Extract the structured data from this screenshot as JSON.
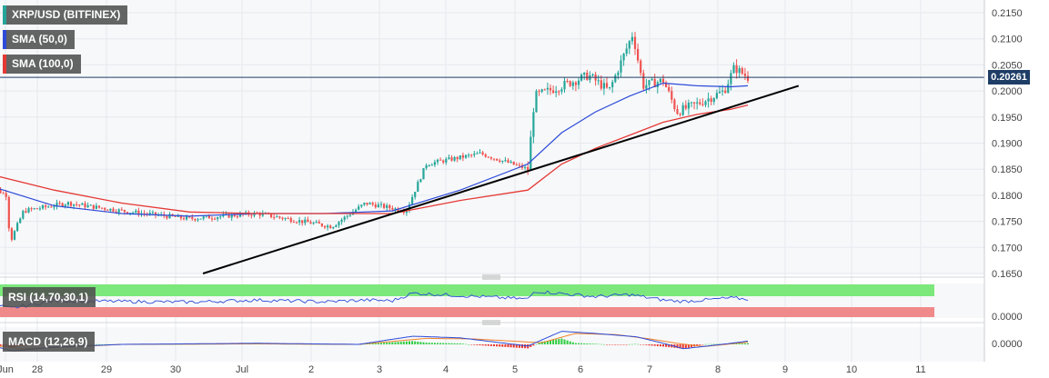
{
  "legend": {
    "symbol": "XRP/USD (BITFINEX)",
    "sma50": "SMA (50,0)",
    "sma100": "SMA (100,0)",
    "rsi": "RSI (14,70,30,1)",
    "macd": "MACD (12,26,9)"
  },
  "colors": {
    "up": "#26a69a",
    "down": "#ef5350",
    "sma50": "#2c4bd8",
    "sma100": "#e53935",
    "trendline": "#000000",
    "rsi_overbought_band": "#7ce87c",
    "rsi_oversold_band": "#f08a8a",
    "macd_line": "#2c4bd8",
    "signal_line": "#f0832c",
    "grid": "#e6e9ee"
  },
  "price_label": "0.20261",
  "chart_data": [
    {
      "type": "candlestick",
      "title": "XRP/USD (BITFINEX)",
      "x_ticks": [
        "Jun",
        "28",
        "29",
        "30",
        "Jul",
        "2",
        "3",
        "4",
        "5",
        "6",
        "7",
        "8",
        "9",
        "10",
        "11"
      ],
      "y_ticks": [
        "0.2150",
        "0.2100",
        "0.2050",
        "0.2000",
        "0.1950",
        "0.1900",
        "0.1850",
        "0.1800",
        "0.1750",
        "0.1700",
        "0.1650"
      ],
      "ylim": [
        0.165,
        0.215
      ],
      "last_price": 0.20261,
      "price_anchors": [
        {
          "day": 0.0,
          "price": 0.1822
        },
        {
          "day": 0.3,
          "price": 0.18
        },
        {
          "day": 0.35,
          "price": 0.171
        },
        {
          "day": 0.55,
          "price": 0.177
        },
        {
          "day": 1.2,
          "price": 0.1785
        },
        {
          "day": 2.0,
          "price": 0.177
        },
        {
          "day": 3.0,
          "price": 0.1755
        },
        {
          "day": 4.0,
          "price": 0.1765
        },
        {
          "day": 5.1,
          "price": 0.174
        },
        {
          "day": 5.6,
          "price": 0.1785
        },
        {
          "day": 6.2,
          "price": 0.177
        },
        {
          "day": 6.5,
          "price": 0.186
        },
        {
          "day": 7.3,
          "price": 0.188
        },
        {
          "day": 8.0,
          "price": 0.185
        },
        {
          "day": 8.1,
          "price": 0.199
        },
        {
          "day": 8.9,
          "price": 0.203
        },
        {
          "day": 9.2,
          "price": 0.2
        },
        {
          "day": 9.55,
          "price": 0.211
        },
        {
          "day": 9.7,
          "price": 0.201
        },
        {
          "day": 10.0,
          "price": 0.202
        },
        {
          "day": 10.2,
          "price": 0.196
        },
        {
          "day": 10.5,
          "price": 0.1975
        },
        {
          "day": 10.9,
          "price": 0.2
        },
        {
          "day": 11.05,
          "price": 0.2045
        },
        {
          "day": 11.25,
          "price": 0.2026
        }
      ],
      "series": [
        {
          "name": "SMA (50,0)",
          "points": [
            [
              0.0,
              0.182
            ],
            [
              1.0,
              0.178
            ],
            [
              2.0,
              0.1765
            ],
            [
              3.0,
              0.176
            ],
            [
              4.0,
              0.1765
            ],
            [
              5.0,
              0.1765
            ],
            [
              6.0,
              0.177
            ],
            [
              7.0,
              0.181
            ],
            [
              8.0,
              0.186
            ],
            [
              8.5,
              0.192
            ],
            [
              9.0,
              0.196
            ],
            [
              9.5,
              0.199
            ],
            [
              10.0,
              0.2015
            ],
            [
              10.5,
              0.201
            ],
            [
              11.0,
              0.2008
            ],
            [
              11.25,
              0.201
            ]
          ]
        },
        {
          "name": "SMA (100,0)",
          "points": [
            [
              -0.1,
              0.1845
            ],
            [
              1.0,
              0.181
            ],
            [
              2.0,
              0.1785
            ],
            [
              3.0,
              0.1768
            ],
            [
              4.0,
              0.1765
            ],
            [
              5.0,
              0.1765
            ],
            [
              6.0,
              0.1765
            ],
            [
              7.0,
              0.179
            ],
            [
              8.0,
              0.181
            ],
            [
              8.5,
              0.186
            ],
            [
              9.0,
              0.189
            ],
            [
              9.5,
              0.1915
            ],
            [
              10.0,
              0.194
            ],
            [
              10.5,
              0.1955
            ],
            [
              11.0,
              0.1965
            ],
            [
              11.25,
              0.1973
            ]
          ]
        },
        {
          "name": "trendline",
          "points": [
            [
              3.2,
              0.165
            ],
            [
              12.0,
              0.201
            ]
          ]
        }
      ]
    },
    {
      "type": "line",
      "title": "RSI (14,70,30,1)",
      "y_ticks": [
        "0.0000"
      ],
      "points": [
        [
          0.0,
          45
        ],
        [
          0.35,
          28
        ],
        [
          1.0,
          50
        ],
        [
          2.0,
          48
        ],
        [
          3.0,
          46
        ],
        [
          4.0,
          52
        ],
        [
          5.0,
          47
        ],
        [
          5.6,
          52
        ],
        [
          6.0,
          50
        ],
        [
          6.3,
          72
        ],
        [
          7.0,
          65
        ],
        [
          8.0,
          55
        ],
        [
          8.1,
          78
        ],
        [
          9.0,
          62
        ],
        [
          9.5,
          68
        ],
        [
          10.0,
          52
        ],
        [
          10.3,
          48
        ],
        [
          11.0,
          58
        ],
        [
          11.25,
          55
        ]
      ]
    },
    {
      "type": "line",
      "title": "MACD (12,26,9)",
      "y_ticks": [
        "0.0000"
      ],
      "macd": [
        [
          0.0,
          0.0
        ],
        [
          0.4,
          -0.0012
        ],
        [
          1.0,
          -0.0005
        ],
        [
          2.0,
          0.0
        ],
        [
          4.0,
          0.0002
        ],
        [
          5.5,
          0.0
        ],
        [
          6.3,
          0.0015
        ],
        [
          7.0,
          0.0012
        ],
        [
          8.0,
          -0.0003
        ],
        [
          8.5,
          0.0024
        ],
        [
          9.0,
          0.002
        ],
        [
          9.6,
          0.0014
        ],
        [
          10.0,
          0.0002
        ],
        [
          10.3,
          -0.0008
        ],
        [
          11.0,
          0.0002
        ],
        [
          11.25,
          0.0006
        ]
      ],
      "signal": [
        [
          0.0,
          0.0
        ],
        [
          0.5,
          -0.0008
        ],
        [
          1.0,
          -0.0006
        ],
        [
          2.0,
          0.0
        ],
        [
          4.0,
          0.0001
        ],
        [
          5.5,
          0.0
        ],
        [
          6.5,
          0.0011
        ],
        [
          7.2,
          0.001
        ],
        [
          8.2,
          0.0003
        ],
        [
          8.7,
          0.002
        ],
        [
          9.3,
          0.0018
        ],
        [
          9.8,
          0.001
        ],
        [
          10.2,
          0.0002
        ],
        [
          10.6,
          -0.0004
        ],
        [
          11.25,
          0.0004
        ]
      ]
    }
  ]
}
